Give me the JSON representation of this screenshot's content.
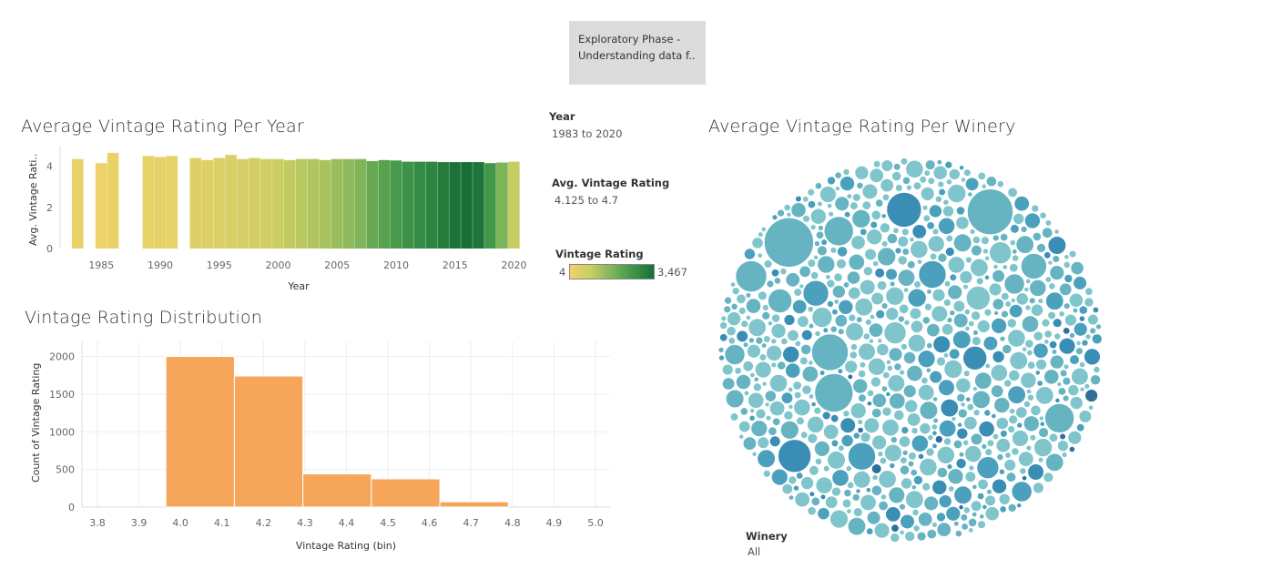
{
  "tooltip_box": {
    "line1": "Exploratory Phase -",
    "line2": "Understanding data f.."
  },
  "filters": {
    "year": {
      "title": "Year",
      "value": "1983 to 2020"
    },
    "avg_rating": {
      "title": "Avg. Vintage Rating",
      "value": "4.125 to 4.7"
    },
    "color_legend": {
      "title": "Vintage Rating",
      "min_label": "4",
      "max_label": "3,467",
      "min_color": "#f0d36a",
      "max_color": "#186f36"
    },
    "winery": {
      "title": "Winery",
      "value": "All"
    }
  },
  "chart_data": [
    {
      "type": "bar",
      "title": "Average Vintage Rating Per Year",
      "xlabel": "Year",
      "ylabel": "Avg. Vintage Rati..",
      "ylim": [
        0,
        5
      ],
      "yticks": [
        0,
        2,
        4
      ],
      "xticks": [
        1985,
        1990,
        1995,
        2000,
        2005,
        2010,
        2015,
        2020
      ],
      "x": [
        1983,
        1984,
        1985,
        1986,
        1989,
        1990,
        1991,
        1993,
        1994,
        1995,
        1996,
        1997,
        1998,
        1999,
        2000,
        2001,
        2002,
        2003,
        2004,
        2005,
        2006,
        2007,
        2008,
        2009,
        2010,
        2011,
        2012,
        2013,
        2014,
        2015,
        2016,
        2017,
        2018,
        2019,
        2020
      ],
      "values": [
        4.35,
        null,
        4.15,
        4.65,
        4.5,
        4.45,
        4.5,
        4.4,
        4.3,
        4.4,
        4.55,
        4.35,
        4.4,
        4.35,
        4.35,
        4.3,
        4.35,
        4.35,
        4.3,
        4.35,
        4.35,
        4.35,
        4.25,
        4.3,
        4.28,
        4.22,
        4.22,
        4.22,
        4.2,
        4.2,
        4.2,
        4.2,
        4.15,
        4.18,
        4.22
      ],
      "color_value": [
        5,
        0,
        4,
        5,
        8,
        10,
        9,
        20,
        22,
        25,
        30,
        35,
        45,
        55,
        70,
        90,
        110,
        140,
        170,
        220,
        280,
        360,
        600,
        800,
        1100,
        1400,
        1700,
        2000,
        2500,
        3200,
        3467,
        3000,
        1200,
        400,
        80
      ]
    },
    {
      "type": "bar",
      "title": "Vintage Rating Distribution",
      "xlabel": "Vintage Rating (bin)",
      "ylabel": "Count of Vintage Rating",
      "bar_color": "#f6a65a",
      "xlim": [
        3.8,
        5.0
      ],
      "xticks": [
        3.8,
        3.9,
        4.0,
        4.1,
        4.2,
        4.3,
        4.4,
        4.5,
        4.6,
        4.7,
        4.8,
        4.9,
        5.0
      ],
      "yticks": [
        0,
        500,
        1000,
        1500,
        2000
      ],
      "ylim": [
        0,
        2200
      ],
      "bins": [
        {
          "start": 3.965,
          "end": 4.13,
          "value": 2000
        },
        {
          "start": 4.13,
          "end": 4.295,
          "value": 1740
        },
        {
          "start": 4.295,
          "end": 4.46,
          "value": 440
        },
        {
          "start": 4.46,
          "end": 4.625,
          "value": 375
        },
        {
          "start": 4.625,
          "end": 4.79,
          "value": 70
        }
      ]
    },
    {
      "type": "bubble",
      "title": "Average Vintage Rating Per Winery",
      "colors": [
        "#7fc5cb",
        "#66b3c2",
        "#4aa0bd",
        "#3a8db4",
        "#2e6f9b"
      ]
    }
  ]
}
